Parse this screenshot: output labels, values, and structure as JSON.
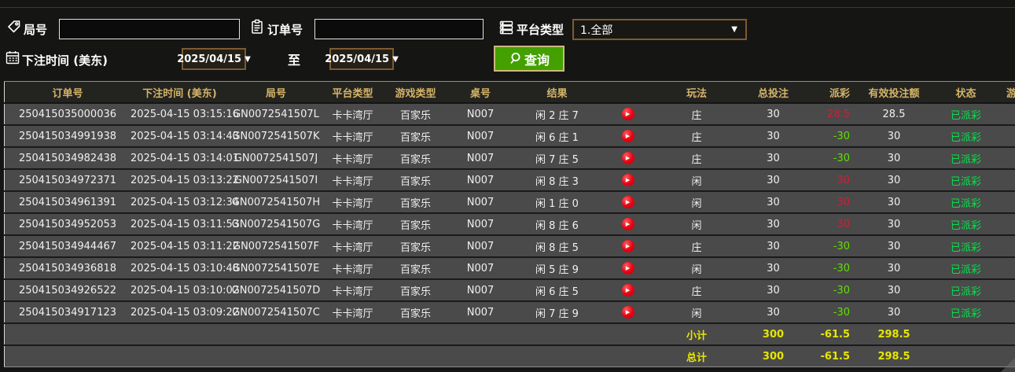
{
  "filters": {
    "round_label": "局号",
    "round_value": "",
    "order_label": "订单号",
    "order_value": "",
    "platform_label": "平台类型",
    "platform_selected": "1.全部",
    "bet_time_label": "下注时间 (美东)",
    "date_from": "2025/04/15",
    "to_label": "至",
    "date_to": "2025/04/15",
    "search_label": "查询",
    "dropdown_arrow": "▼"
  },
  "icons": {
    "round": "tag-icon",
    "order": "clipboard-icon",
    "platform": "server-list-icon",
    "bet_time": "calendar-icon",
    "search": "magnifier-icon",
    "play": "play-icon"
  },
  "colors": {
    "accent_border": "#7d5a2f",
    "search_green": "#43a000",
    "search_border": "#cdb97a",
    "header_gold": "#d4b469",
    "row_gray": "#4a4a4a",
    "win_red": "#cc2036",
    "loss_green": "#5de000",
    "status_green": "#07e04c",
    "summary_yellow": "#e6e600",
    "play_red": "#e60012"
  },
  "table": {
    "column_keys": [
      "order_no",
      "bet_time",
      "round_no",
      "platform",
      "game_type",
      "table_no",
      "result",
      "play",
      "bet_type",
      "total_bet",
      "payout",
      "valid_bet",
      "status",
      "game"
    ],
    "headers": [
      "订单号",
      "下注时间 (美东)",
      "局号",
      "平台类型",
      "游戏类型",
      "桌号",
      "结果",
      "",
      "玩法",
      "总投注",
      "派彩",
      "有效投注额",
      "状态",
      "游戏"
    ],
    "rows": [
      {
        "order_no": "250415035000036",
        "bet_time": "2025-04-15 03:15:16",
        "round_no": "GN0072541507L",
        "platform": "卡卡湾厅",
        "game_type": "百家乐",
        "table_no": "N007",
        "result": "闲 2 庄 7",
        "bet_type": "庄",
        "total_bet": "30",
        "payout": "28.5",
        "valid_bet": "28.5",
        "status": "已派彩",
        "game": ""
      },
      {
        "order_no": "250415034991938",
        "bet_time": "2025-04-15 03:14:43",
        "round_no": "GN0072541507K",
        "platform": "卡卡湾厅",
        "game_type": "百家乐",
        "table_no": "N007",
        "result": "闲 6 庄 1",
        "bet_type": "庄",
        "total_bet": "30",
        "payout": "-30",
        "valid_bet": "30",
        "status": "已派彩",
        "game": ""
      },
      {
        "order_no": "250415034982438",
        "bet_time": "2025-04-15 03:14:01",
        "round_no": "GN0072541507J",
        "platform": "卡卡湾厅",
        "game_type": "百家乐",
        "table_no": "N007",
        "result": "闲 7 庄 5",
        "bet_type": "庄",
        "total_bet": "30",
        "payout": "-30",
        "valid_bet": "30",
        "status": "已派彩",
        "game": ""
      },
      {
        "order_no": "250415034972371",
        "bet_time": "2025-04-15 03:13:22",
        "round_no": "GN0072541507I",
        "platform": "卡卡湾厅",
        "game_type": "百家乐",
        "table_no": "N007",
        "result": "闲 8 庄 3",
        "bet_type": "闲",
        "total_bet": "30",
        "payout": "30",
        "valid_bet": "30",
        "status": "已派彩",
        "game": ""
      },
      {
        "order_no": "250415034961391",
        "bet_time": "2025-04-15 03:12:34",
        "round_no": "GN0072541507H",
        "platform": "卡卡湾厅",
        "game_type": "百家乐",
        "table_no": "N007",
        "result": "闲 1 庄 0",
        "bet_type": "闲",
        "total_bet": "30",
        "payout": "30",
        "valid_bet": "30",
        "status": "已派彩",
        "game": ""
      },
      {
        "order_no": "250415034952053",
        "bet_time": "2025-04-15 03:11:53",
        "round_no": "GN0072541507G",
        "platform": "卡卡湾厅",
        "game_type": "百家乐",
        "table_no": "N007",
        "result": "闲 8 庄 6",
        "bet_type": "闲",
        "total_bet": "30",
        "payout": "30",
        "valid_bet": "30",
        "status": "已派彩",
        "game": ""
      },
      {
        "order_no": "250415034944467",
        "bet_time": "2025-04-15 03:11:22",
        "round_no": "GN0072541507F",
        "platform": "卡卡湾厅",
        "game_type": "百家乐",
        "table_no": "N007",
        "result": "闲 8 庄 5",
        "bet_type": "庄",
        "total_bet": "30",
        "payout": "-30",
        "valid_bet": "30",
        "status": "已派彩",
        "game": ""
      },
      {
        "order_no": "250415034936818",
        "bet_time": "2025-04-15 03:10:48",
        "round_no": "GN0072541507E",
        "platform": "卡卡湾厅",
        "game_type": "百家乐",
        "table_no": "N007",
        "result": "闲 5 庄 9",
        "bet_type": "闲",
        "total_bet": "30",
        "payout": "-30",
        "valid_bet": "30",
        "status": "已派彩",
        "game": ""
      },
      {
        "order_no": "250415034926522",
        "bet_time": "2025-04-15 03:10:02",
        "round_no": "GN0072541507D",
        "platform": "卡卡湾厅",
        "game_type": "百家乐",
        "table_no": "N007",
        "result": "闲 6 庄 5",
        "bet_type": "庄",
        "total_bet": "30",
        "payout": "-30",
        "valid_bet": "30",
        "status": "已派彩",
        "game": ""
      },
      {
        "order_no": "250415034917123",
        "bet_time": "2025-04-15 03:09:22",
        "round_no": "GN0072541507C",
        "platform": "卡卡湾厅",
        "game_type": "百家乐",
        "table_no": "N007",
        "result": "闲 7 庄 9",
        "bet_type": "闲",
        "total_bet": "30",
        "payout": "-30",
        "valid_bet": "30",
        "status": "已派彩",
        "game": ""
      }
    ],
    "summary_rows": [
      {
        "key": "subtotal",
        "label": "小计",
        "total_bet": "300",
        "payout": "-61.5",
        "valid_bet": "298.5"
      },
      {
        "key": "total",
        "label": "总计",
        "total_bet": "300",
        "payout": "-61.5",
        "valid_bet": "298.5"
      }
    ]
  }
}
